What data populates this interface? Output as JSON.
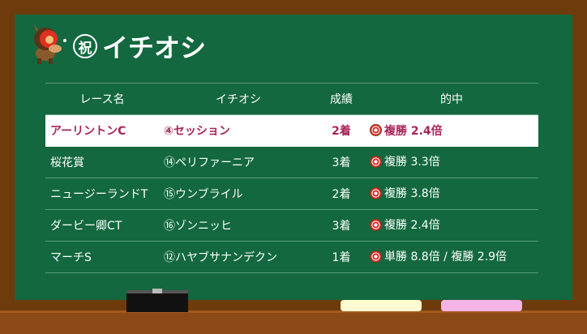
{
  "header": {
    "badge": "祝",
    "title": "イチオシ",
    "mascot": "horse-mascot"
  },
  "table": {
    "columns": [
      "レース名",
      "イチオシ",
      "成績",
      "的中"
    ],
    "rows": [
      {
        "race": "アーリントンC",
        "pick": "④セッション",
        "result": "2着",
        "hit": "複勝 2.4倍",
        "highlight": true
      },
      {
        "race": "桜花賞",
        "pick": "⑭ペリファーニア",
        "result": "3着",
        "hit": "複勝 3.3倍"
      },
      {
        "race": "ニュージーランドT",
        "pick": "⑮ウンブライル",
        "result": "2着",
        "hit": "複勝 3.8倍"
      },
      {
        "race": "ダービー卿CT",
        "pick": "⑯ゾンニッヒ",
        "result": "3着",
        "hit": "複勝 2.4倍"
      },
      {
        "race": "マーチS",
        "pick": "⑫ハヤブサナンデクン",
        "result": "1着",
        "hit": "単勝 8.8倍 / 複勝 2.9倍"
      }
    ]
  },
  "colors": {
    "board": "#13683f",
    "frame": "#6e3b0c",
    "highlight_text": "#a8245a"
  }
}
